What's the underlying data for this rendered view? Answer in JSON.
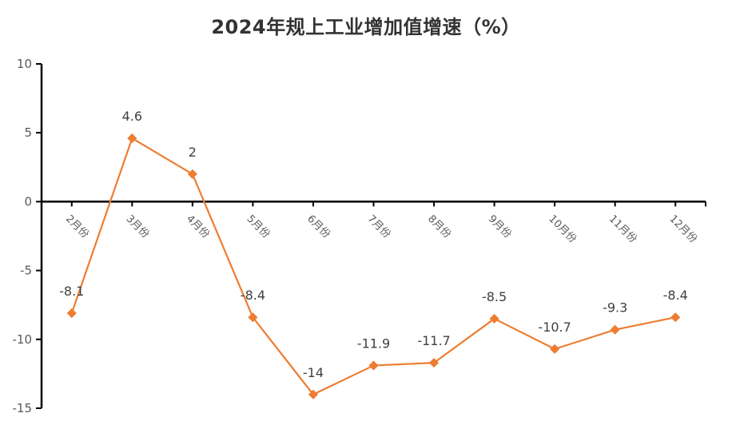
{
  "title": "2024年规上工业增加值增速（%）",
  "colors": {
    "series": "#ED7D31",
    "axis": "#000000",
    "text": "#404040",
    "tick_text": "#595959"
  },
  "chart_data": {
    "type": "line",
    "title": "2024年规上工业增加值增速（%）",
    "xlabel": "",
    "ylabel": "",
    "categories": [
      "2月份",
      "3月份",
      "4月份",
      "5月份",
      "6月份",
      "7月份",
      "8月份",
      "9月份",
      "10月份",
      "11月份",
      "12月份"
    ],
    "series": [
      {
        "name": "规上工业增加值增速",
        "values": [
          -8.1,
          4.6,
          2,
          -8.4,
          -14,
          -11.9,
          -11.7,
          -8.5,
          -10.7,
          -9.3,
          -8.4
        ]
      }
    ],
    "data_labels": [
      "-8.1",
      "4.6",
      "2",
      "-8.4",
      "-14",
      "-11.9",
      "-11.7",
      "-8.5",
      "-10.7",
      "-9.3",
      "-8.4"
    ],
    "ylim": [
      -15,
      10
    ],
    "yticks": [
      10,
      5,
      0,
      -5,
      -10,
      -15
    ],
    "grid": false,
    "legend": null,
    "marker": "diamond"
  }
}
